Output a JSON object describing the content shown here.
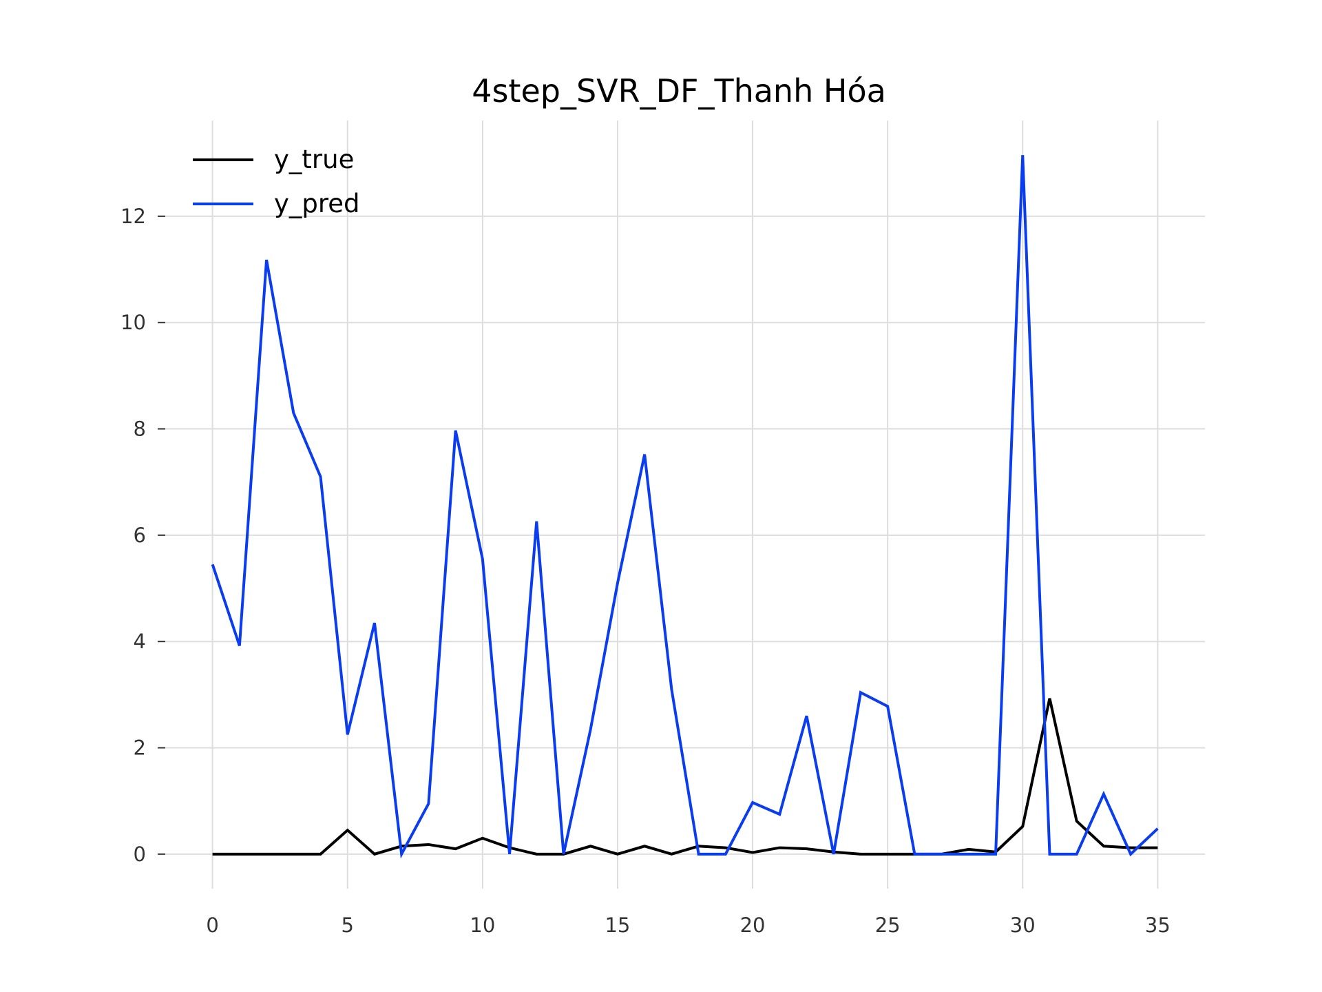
{
  "chart_data": {
    "type": "line",
    "title": "4step_SVR_DF_Thanh Hóa",
    "xlabel": "",
    "ylabel": "",
    "xlim": [
      -1.75,
      36.75
    ],
    "ylim": [
      -0.65,
      13.8
    ],
    "x_ticks": [
      0,
      5,
      10,
      15,
      20,
      25,
      30,
      35
    ],
    "y_ticks": [
      0,
      2,
      4,
      6,
      8,
      10,
      12
    ],
    "grid": true,
    "legend_position": "top-left",
    "x": [
      0,
      1,
      2,
      3,
      4,
      5,
      6,
      7,
      8,
      9,
      10,
      11,
      12,
      13,
      14,
      15,
      16,
      17,
      18,
      19,
      20,
      21,
      22,
      23,
      24,
      25,
      26,
      27,
      28,
      29,
      30,
      31,
      32,
      33,
      34,
      35
    ],
    "series": [
      {
        "name": "y_true",
        "color": "#000000",
        "values": [
          0,
          0,
          0,
          0,
          0,
          0.45,
          0,
          0.15,
          0.18,
          0.1,
          0.3,
          0.12,
          0,
          0,
          0.15,
          0,
          0.15,
          0,
          0.15,
          0.12,
          0.03,
          0.12,
          0.1,
          0.04,
          0,
          0,
          0,
          0,
          0.09,
          0.04,
          0.52,
          2.93,
          0.62,
          0.15,
          0.12,
          0.12
        ]
      },
      {
        "name": "y_pred",
        "color": "#0a3cf0",
        "values": [
          5.45,
          3.92,
          11.18,
          8.3,
          7.1,
          2.25,
          4.35,
          0,
          0.95,
          7.97,
          5.55,
          0,
          6.26,
          0,
          2.35,
          5.1,
          7.52,
          3.1,
          0,
          0,
          0.97,
          0.75,
          2.6,
          0,
          3.04,
          2.78,
          0,
          0,
          0,
          0,
          13.15,
          0,
          0,
          1.13,
          0,
          0.48
        ]
      }
    ]
  }
}
